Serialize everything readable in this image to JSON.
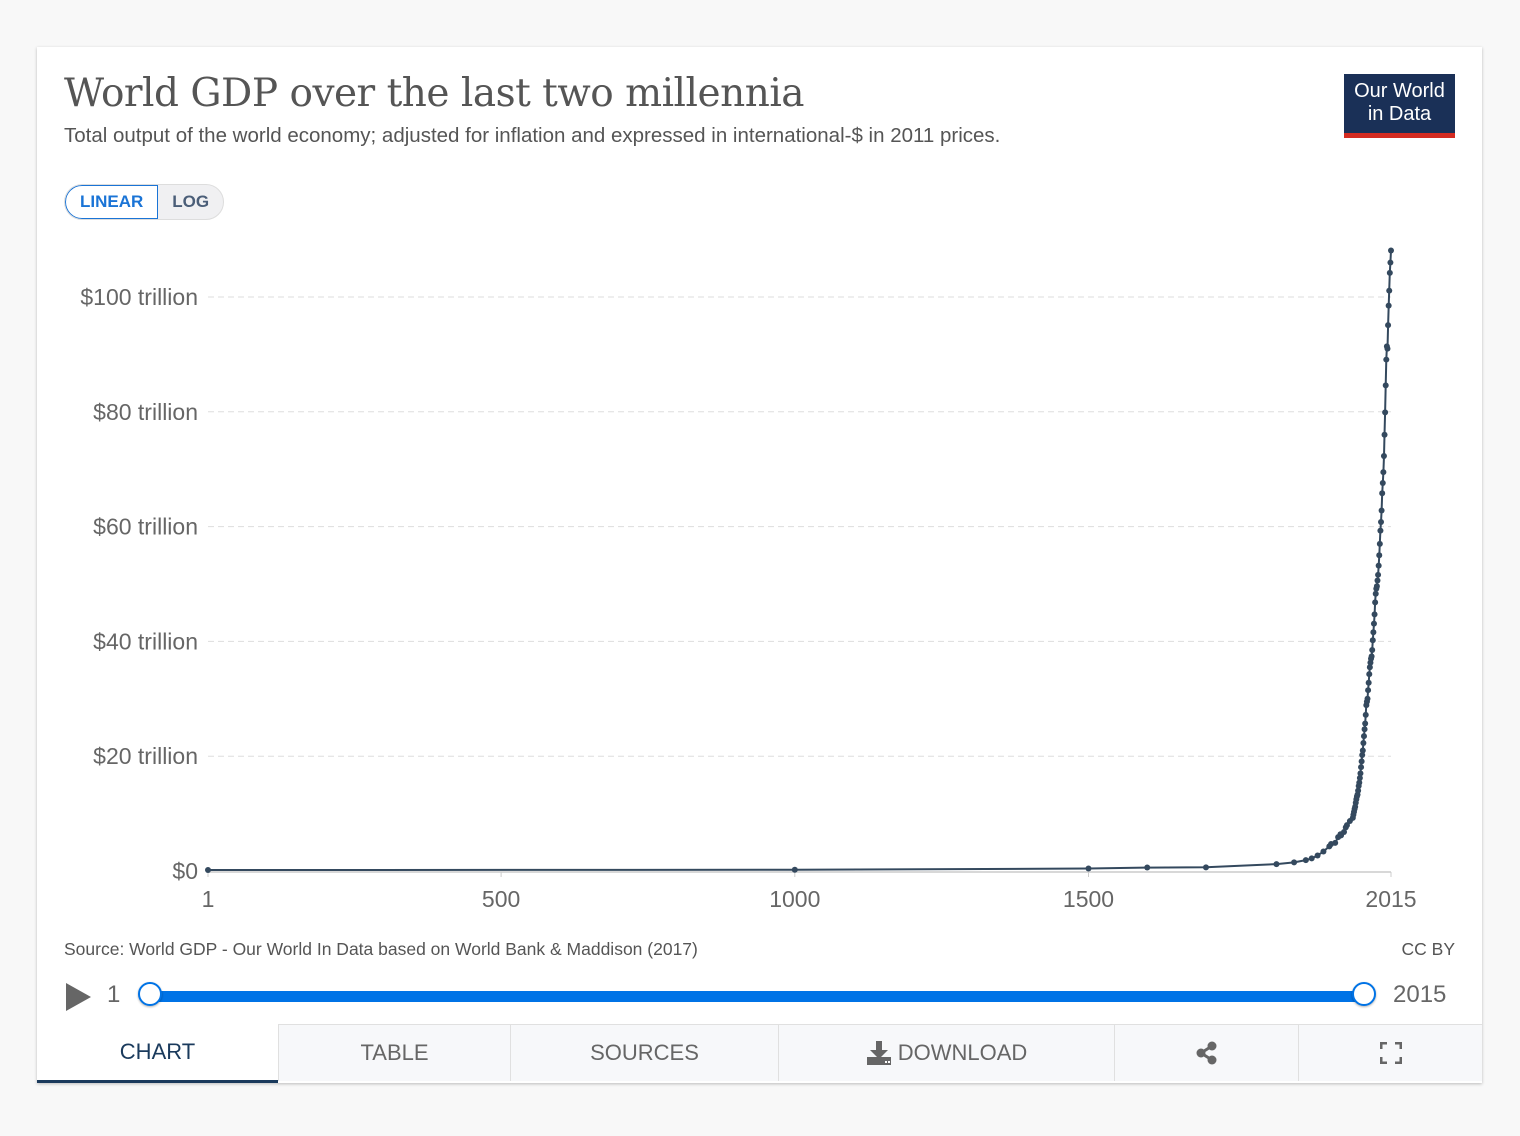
{
  "header": {
    "title": "World GDP over the last two millennia",
    "subtitle": "Total output of the world economy; adjusted for inflation and expressed in international-$ in 2011 prices.",
    "logo_line1": "Our World",
    "logo_line2": "in Data"
  },
  "scale_toggle": {
    "linear_label": "LINEAR",
    "log_label": "LOG",
    "selected": "LINEAR"
  },
  "footer": {
    "source": "Source: World GDP - Our World In Data based on World Bank & Maddison (2017)",
    "license": "CC BY"
  },
  "timeline": {
    "start_label": "1",
    "end_label": "2015",
    "start_year": 1,
    "end_year": 2015,
    "icon": "play-icon"
  },
  "tabs": [
    {
      "label": "CHART",
      "active": true
    },
    {
      "label": "TABLE",
      "active": false
    },
    {
      "label": "SOURCES",
      "active": false
    },
    {
      "label": "DOWNLOAD",
      "icon": "download-icon",
      "active": false
    },
    {
      "label": "",
      "icon": "share-icon",
      "active": false
    },
    {
      "label": "",
      "icon": "fullscreen-icon",
      "active": false
    }
  ],
  "colors": {
    "line": "#34495e",
    "accent": "#0073e6",
    "logo_bg": "#1a3057",
    "logo_bar": "#d42b21",
    "grid": "#dddddd"
  },
  "chart_data": {
    "type": "line",
    "title": "World GDP over the last two millennia",
    "xlabel": "",
    "ylabel": "",
    "xlim": [
      1,
      2015
    ],
    "ylim": [
      0,
      100
    ],
    "y_unit": "trillion international-$ (2011 prices)",
    "x_ticks": [
      "1",
      "500",
      "1000",
      "1500",
      "2015"
    ],
    "x_tick_values": [
      1,
      500,
      1000,
      1500,
      2015
    ],
    "y_ticks": [
      "$0",
      "$20 trillion",
      "$40 trillion",
      "$60 trillion",
      "$80 trillion",
      "$100 trillion"
    ],
    "y_tick_values": [
      0,
      20,
      40,
      60,
      80,
      100
    ],
    "grid": "horizontal dashed",
    "series": [
      {
        "name": "World GDP",
        "x": [
          1,
          1000,
          1500,
          1600,
          1700,
          1820,
          1850,
          1870,
          1880,
          1890,
          1900,
          1910,
          1913,
          1920,
          1925,
          1929,
          1930,
          1935,
          1938,
          1940,
          1945,
          1950,
          1951,
          1952,
          1953,
          1954,
          1955,
          1956,
          1957,
          1958,
          1959,
          1960,
          1961,
          1962,
          1963,
          1964,
          1965,
          1966,
          1967,
          1968,
          1969,
          1970,
          1971,
          1972,
          1973,
          1974,
          1975,
          1976,
          1977,
          1978,
          1979,
          1980,
          1981,
          1982,
          1983,
          1984,
          1985,
          1986,
          1987,
          1988,
          1989,
          1990,
          1991,
          1992,
          1993,
          1994,
          1995,
          1996,
          1997,
          1998,
          1999,
          2000,
          2001,
          2002,
          2003,
          2004,
          2005,
          2006,
          2007,
          2008,
          2009,
          2010,
          2011,
          2012,
          2013,
          2014,
          2015
        ],
        "values": [
          0.18,
          0.21,
          0.43,
          0.6,
          0.64,
          1.2,
          1.5,
          1.9,
          2.2,
          2.7,
          3.4,
          4.3,
          4.7,
          4.9,
          5.9,
          6.4,
          6.2,
          6.8,
          7.6,
          8.0,
          8.7,
          9.25,
          9.8,
          10.3,
          10.8,
          11.2,
          11.9,
          12.5,
          13.0,
          13.3,
          14.0,
          14.8,
          15.4,
          16.2,
          17.0,
          18.1,
          19.1,
          20.2,
          21.0,
          22.3,
          23.5,
          24.7,
          25.7,
          27.2,
          28.9,
          29.5,
          30.0,
          31.5,
          32.8,
          34.3,
          35.5,
          36.3,
          37.0,
          37.4,
          38.5,
          40.2,
          41.6,
          43.1,
          44.7,
          46.8,
          48.3,
          49.2,
          49.6,
          50.6,
          51.6,
          53.2,
          55.0,
          57.0,
          59.3,
          60.8,
          62.8,
          65.8,
          67.6,
          69.5,
          72.3,
          76.0,
          79.9,
          84.6,
          89.1,
          91.4,
          91.0,
          95.1,
          98.5,
          101.1,
          104.2,
          106.0,
          108.1
        ]
      }
    ]
  }
}
